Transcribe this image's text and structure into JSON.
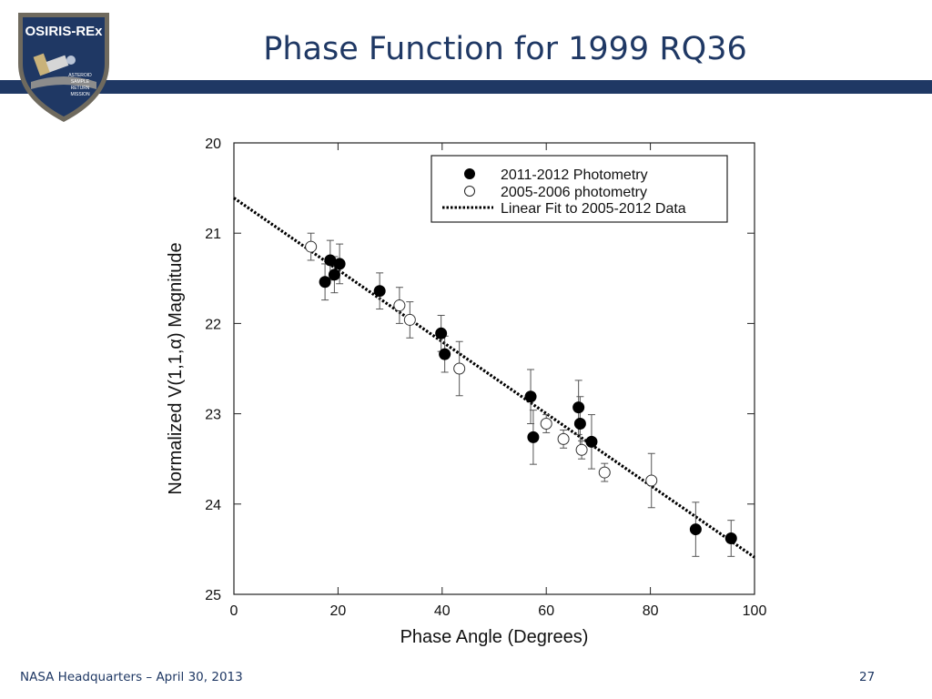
{
  "slide": {
    "title": "Phase Function for 1999 RQ36",
    "footer_left": "NASA Headquarters – April 30, 2013",
    "page_number": "27",
    "accent_color": "#1f3864"
  },
  "logo": {
    "text": "OSIRIS-REx",
    "subtext": "ASTEROID SAMPLE RETURN MISSION",
    "border_color": "#6f6a5e",
    "field_color": "#1f3864"
  },
  "chart_data": {
    "type": "scatter",
    "xlabel": "Phase Angle (Degrees)",
    "ylabel": "Normalized V(1,1,α) Magnitude",
    "xlim": [
      0,
      100
    ],
    "ylim": [
      20,
      25
    ],
    "y_inverted": true,
    "x_ticks": [
      0,
      20,
      40,
      60,
      80,
      100
    ],
    "y_ticks": [
      20,
      21,
      22,
      23,
      24,
      25
    ],
    "grid": false,
    "legend_position": "top-right",
    "series": [
      {
        "name": "2011-2012 Photometry",
        "marker": "filled-circle",
        "points": [
          {
            "x": 17.5,
            "y": 21.54,
            "err": 0.2
          },
          {
            "x": 18.5,
            "y": 21.3,
            "err": 0.22
          },
          {
            "x": 19.3,
            "y": 21.46,
            "err": 0.2
          },
          {
            "x": 20.3,
            "y": 21.34,
            "err": 0.22
          },
          {
            "x": 28.0,
            "y": 21.64,
            "err": 0.2
          },
          {
            "x": 39.8,
            "y": 22.11,
            "err": 0.2
          },
          {
            "x": 40.5,
            "y": 22.34,
            "err": 0.2
          },
          {
            "x": 57.0,
            "y": 22.81,
            "err": 0.3
          },
          {
            "x": 57.5,
            "y": 23.26,
            "err": 0.3
          },
          {
            "x": 66.2,
            "y": 22.93,
            "err": 0.3
          },
          {
            "x": 66.5,
            "y": 23.11,
            "err": 0.3
          },
          {
            "x": 68.7,
            "y": 23.31,
            "err": 0.3
          },
          {
            "x": 88.7,
            "y": 24.28,
            "err": 0.3
          },
          {
            "x": 95.5,
            "y": 24.38,
            "err": 0.2
          }
        ]
      },
      {
        "name": "2005-2006 photometry",
        "marker": "open-circle",
        "points": [
          {
            "x": 14.8,
            "y": 21.15,
            "err": 0.15
          },
          {
            "x": 31.8,
            "y": 21.8,
            "err": 0.2
          },
          {
            "x": 33.8,
            "y": 21.96,
            "err": 0.2
          },
          {
            "x": 43.3,
            "y": 22.5,
            "err": 0.3
          },
          {
            "x": 60.0,
            "y": 23.11,
            "err": 0.1
          },
          {
            "x": 63.3,
            "y": 23.28,
            "err": 0.1
          },
          {
            "x": 66.8,
            "y": 23.4,
            "err": 0.1
          },
          {
            "x": 71.2,
            "y": 23.65,
            "err": 0.1
          },
          {
            "x": 80.2,
            "y": 23.74,
            "err": 0.3
          }
        ]
      },
      {
        "name": "Linear Fit to 2005-2012 Data",
        "marker": "dotted-line",
        "line": [
          {
            "x": 0,
            "y": 20.61
          },
          {
            "x": 100,
            "y": 24.59
          }
        ]
      }
    ]
  }
}
